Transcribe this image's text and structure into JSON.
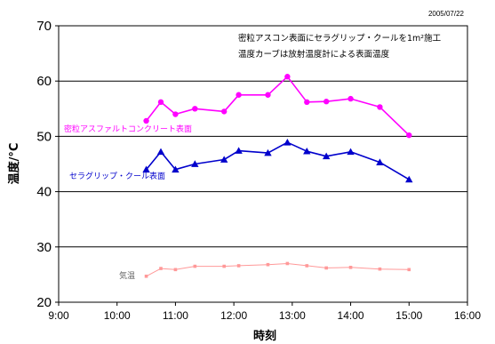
{
  "chart_data": {
    "type": "line",
    "date": "2005/07/22",
    "notes": [
      "密粒アスコン表面にセラグリップ・クールを1m²施工",
      "温度カーブは放射温度計による表面温度"
    ],
    "xlabel": "時刻",
    "ylabel": "温度/°C",
    "xlim": [
      "9:00",
      "16:00"
    ],
    "ylim": [
      20,
      70
    ],
    "x_ticks": [
      "9:00",
      "10:00",
      "11:00",
      "12:00",
      "13:00",
      "14:00",
      "15:00",
      "16:00"
    ],
    "y_ticks": [
      20,
      30,
      40,
      50,
      60,
      70
    ],
    "grid": "horizontal",
    "x": [
      "10:30",
      "10:45",
      "11:00",
      "11:20",
      "11:50",
      "12:05",
      "12:35",
      "12:55",
      "13:15",
      "13:35",
      "14:00",
      "14:30",
      "15:00"
    ],
    "series": [
      {
        "name": "密粒アスファルトコンクリート表面",
        "color": "#ff00ff",
        "marker": "circle",
        "values": [
          52.8,
          56.2,
          54.0,
          55.0,
          54.5,
          57.5,
          57.5,
          60.8,
          56.2,
          56.3,
          56.8,
          55.3,
          50.2
        ]
      },
      {
        "name": "セラグリップ・クール表面",
        "color": "#0000cc",
        "marker": "triangle",
        "values": [
          44.0,
          47.2,
          44.0,
          45.0,
          45.8,
          47.4,
          47.0,
          48.9,
          47.3,
          46.4,
          47.2,
          45.3,
          42.2
        ]
      },
      {
        "name": "気温",
        "color": "#ff9999",
        "marker": "square",
        "values": [
          24.7,
          26.1,
          25.9,
          26.5,
          26.5,
          26.6,
          26.8,
          27.0,
          26.6,
          26.2,
          26.3,
          26.0,
          25.9
        ]
      }
    ]
  }
}
